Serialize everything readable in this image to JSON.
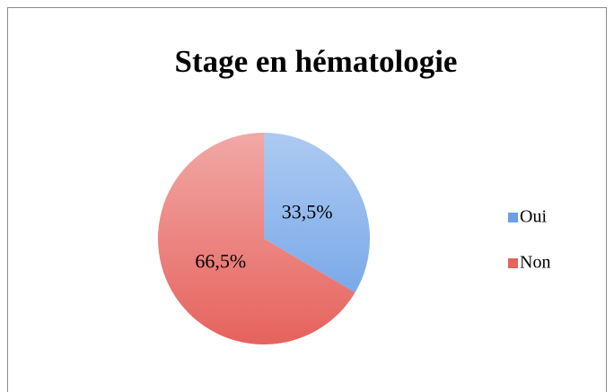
{
  "chart_data": {
    "type": "pie",
    "title": "Stage en hématologie",
    "categories": [
      "Oui",
      "Non"
    ],
    "values": [
      33.5,
      66.5
    ],
    "value_labels": [
      "33,5%",
      "66,5%"
    ],
    "colors": [
      "#6a9fe6",
      "#e6625d"
    ],
    "legend": "right"
  }
}
